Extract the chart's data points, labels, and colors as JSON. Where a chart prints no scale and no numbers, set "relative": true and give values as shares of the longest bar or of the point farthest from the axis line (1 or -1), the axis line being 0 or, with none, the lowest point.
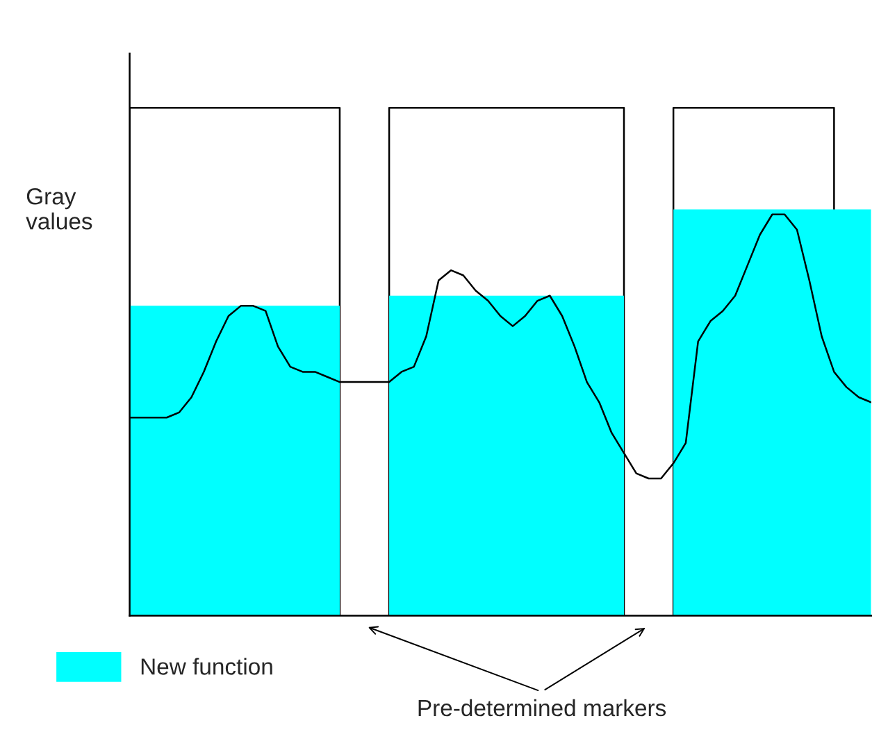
{
  "chart_data": {
    "type": "line",
    "relative": true,
    "ylabel": "Gray\nvalues",
    "legend": "bottom left",
    "categories": [
      null,
      null,
      null,
      null,
      null,
      null,
      null,
      null,
      null,
      null,
      null,
      null,
      null,
      null,
      null,
      null,
      null,
      null,
      null,
      null,
      null,
      null,
      null,
      null,
      null,
      null,
      null,
      null,
      null,
      null,
      null,
      null,
      null,
      null,
      null,
      null,
      null,
      null,
      null,
      null,
      null,
      null,
      null,
      null,
      null,
      null,
      null,
      null,
      null,
      null,
      null,
      null,
      null,
      null,
      null,
      null,
      null,
      null,
      null,
      null,
      null
    ],
    "series": [
      {
        "type": "area",
        "color": "#ffffff",
        "values": [
          1,
          1,
          1,
          1,
          1,
          1,
          1,
          1,
          1,
          1,
          1,
          1,
          1,
          1,
          1,
          1,
          1,
          1,
          null,
          null,
          null,
          1,
          1,
          1,
          1,
          1,
          1,
          1,
          1,
          1,
          1,
          1,
          1,
          1,
          1,
          1,
          1,
          1,
          1,
          1,
          1,
          null,
          null,
          null,
          1,
          1,
          1,
          1,
          1,
          1,
          1,
          1,
          1,
          1,
          1,
          1,
          1,
          1,
          null,
          null,
          null
        ]
      },
      {
        "type": "area",
        "name": "New function",
        "color": "#00ffff",
        "values": [
          0.61,
          0.61,
          0.61,
          0.61,
          0.61,
          0.61,
          0.61,
          0.61,
          0.61,
          0.61,
          0.61,
          0.61,
          0.61,
          0.61,
          0.61,
          0.61,
          0.61,
          0.61,
          null,
          null,
          null,
          0.63,
          0.63,
          0.63,
          0.63,
          0.63,
          0.63,
          0.63,
          0.63,
          0.63,
          0.63,
          0.63,
          0.63,
          0.63,
          0.63,
          0.63,
          0.63,
          0.63,
          0.63,
          0.63,
          0.63,
          null,
          null,
          null,
          0.8,
          0.8,
          0.8,
          0.8,
          0.8,
          0.8,
          0.8,
          0.8,
          0.8,
          0.8,
          0.8,
          0.8,
          0.8,
          0.8,
          0.8,
          0.8,
          0.8
        ]
      },
      {
        "color": "#000000",
        "values": [
          0.39,
          0.39,
          0.39,
          0.39,
          0.4,
          0.43,
          0.48,
          0.54,
          0.59,
          0.61,
          0.61,
          0.6,
          0.53,
          0.49,
          0.48,
          0.48,
          0.47,
          0.46,
          0.46,
          0.46,
          0.46,
          0.46,
          0.48,
          0.49,
          0.55,
          0.66,
          0.68,
          0.67,
          0.64,
          0.62,
          0.59,
          0.57,
          0.59,
          0.62,
          0.63,
          0.59,
          0.53,
          0.46,
          0.42,
          0.36,
          0.32,
          0.28,
          0.27,
          0.27,
          0.3,
          0.34,
          0.54,
          0.58,
          0.6,
          0.63,
          0.69,
          0.75,
          0.79,
          0.79,
          0.76,
          0.66,
          0.55,
          0.48,
          0.45,
          0.43,
          0.42
        ]
      }
    ],
    "annotations": [
      "Pre-determined markers"
    ]
  }
}
